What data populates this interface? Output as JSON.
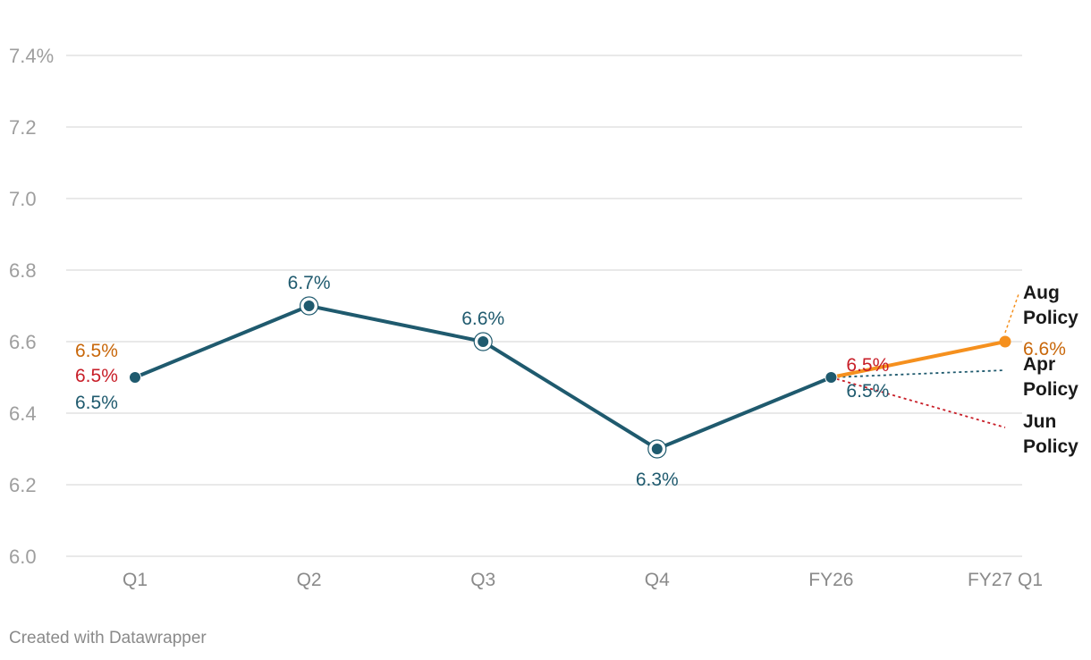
{
  "credit": "Created with Datawrapper",
  "colors": {
    "main": "#1f5a6e",
    "aug": "#f5901e",
    "aug_label": "#c8670a",
    "jun": "#c81e28",
    "grid": "#e2e2e2",
    "axis_text": "#9e9e9e"
  },
  "chart_data": {
    "type": "line",
    "title": "",
    "xlabel": "",
    "ylabel": "",
    "categories": [
      "Q1",
      "Q2",
      "Q3",
      "Q4",
      "FY26",
      "FY27 Q1"
    ],
    "ylim": [
      6.0,
      7.4
    ],
    "yticks": [
      6.0,
      6.2,
      6.4,
      6.6,
      6.8,
      7.0,
      7.2,
      7.4
    ],
    "ytick_labels": [
      "6.0",
      "6.2",
      "6.4",
      "6.6",
      "6.8",
      "7.0",
      "7.2",
      "7.4%"
    ],
    "grid": true,
    "series": [
      {
        "name": "",
        "style": "solid",
        "x": [
          "Q1",
          "Q2",
          "Q3",
          "Q4",
          "FY26"
        ],
        "values": [
          6.5,
          6.7,
          6.6,
          6.3,
          6.5
        ],
        "labels": [
          "6.5%",
          "6.7%",
          "6.6%",
          "6.3%",
          "6.5%"
        ]
      },
      {
        "name": "Aug Policy",
        "style": "solid",
        "x": [
          "FY26",
          "FY27 Q1"
        ],
        "values": [
          6.5,
          6.6
        ],
        "labels": [
          "6.5%",
          "6.6%"
        ]
      },
      {
        "name": "Apr Policy",
        "style": "dotted",
        "x": [
          "FY26",
          "FY27 Q1"
        ],
        "values": [
          6.5,
          6.52
        ],
        "labels": [
          "6.5%"
        ]
      },
      {
        "name": "Jun Policy",
        "style": "dotted",
        "x": [
          "FY26",
          "FY27 Q1"
        ],
        "values": [
          6.5,
          6.36
        ],
        "labels": [
          "6.5%"
        ]
      }
    ],
    "policy_labels": [
      {
        "line1": "Aug",
        "line2": "Policy"
      },
      {
        "line1": "Apr",
        "line2": "Policy"
      },
      {
        "line1": "Jun",
        "line2": "Policy"
      }
    ]
  }
}
